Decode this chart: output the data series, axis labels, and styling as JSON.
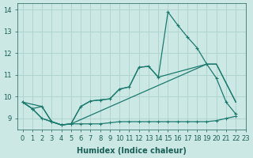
{
  "xlabel": "Humidex (Indice chaleur)",
  "xlim": [
    -0.5,
    23
  ],
  "ylim": [
    8.5,
    14.3
  ],
  "yticks": [
    9,
    10,
    11,
    12,
    13,
    14
  ],
  "xticks": [
    0,
    1,
    2,
    3,
    4,
    5,
    6,
    7,
    8,
    9,
    10,
    11,
    12,
    13,
    14,
    15,
    16,
    17,
    18,
    19,
    20,
    21,
    22,
    23
  ],
  "bg_color": "#cce8e5",
  "grid_color": "#b0d4d0",
  "line_color": "#1a7a6e",
  "font_color": "#1a5f56",
  "tick_fontsize": 6,
  "label_fontsize": 7,
  "line1_x": [
    0,
    1,
    2,
    3,
    4,
    5,
    6,
    7,
    8,
    9,
    10,
    11,
    12,
    13,
    14,
    15,
    16,
    17,
    18,
    19,
    20,
    21,
    22
  ],
  "line1_y": [
    9.75,
    9.45,
    9.55,
    8.85,
    8.7,
    8.75,
    9.55,
    9.8,
    9.85,
    9.9,
    10.35,
    10.45,
    11.35,
    11.4,
    10.9,
    13.9,
    13.3,
    12.75,
    12.25,
    11.5,
    10.85,
    9.75,
    9.2
  ],
  "line2_x": [
    0,
    2,
    3,
    4,
    5,
    6,
    7,
    8,
    9,
    10,
    11,
    12,
    13,
    14,
    19,
    20,
    22
  ],
  "line2_y": [
    9.75,
    9.55,
    8.85,
    8.7,
    8.75,
    9.55,
    9.8,
    9.85,
    9.9,
    10.35,
    10.45,
    11.35,
    11.4,
    10.9,
    11.5,
    11.5,
    9.75
  ],
  "line3_x": [
    0,
    1,
    2,
    3,
    4,
    5,
    19,
    20,
    22
  ],
  "line3_y": [
    9.75,
    9.45,
    9.0,
    8.85,
    8.7,
    8.75,
    11.5,
    11.5,
    9.75
  ],
  "line4_x": [
    0,
    1,
    2,
    3,
    4,
    5,
    6,
    7,
    8,
    9,
    10,
    11,
    12,
    13,
    14,
    15,
    16,
    17,
    18,
    19,
    20,
    21,
    22
  ],
  "line4_y": [
    9.75,
    9.45,
    9.0,
    8.85,
    8.7,
    8.75,
    8.75,
    8.75,
    8.75,
    8.8,
    8.85,
    8.85,
    8.85,
    8.85,
    8.85,
    8.85,
    8.85,
    8.85,
    8.85,
    8.85,
    8.9,
    9.0,
    9.1
  ]
}
